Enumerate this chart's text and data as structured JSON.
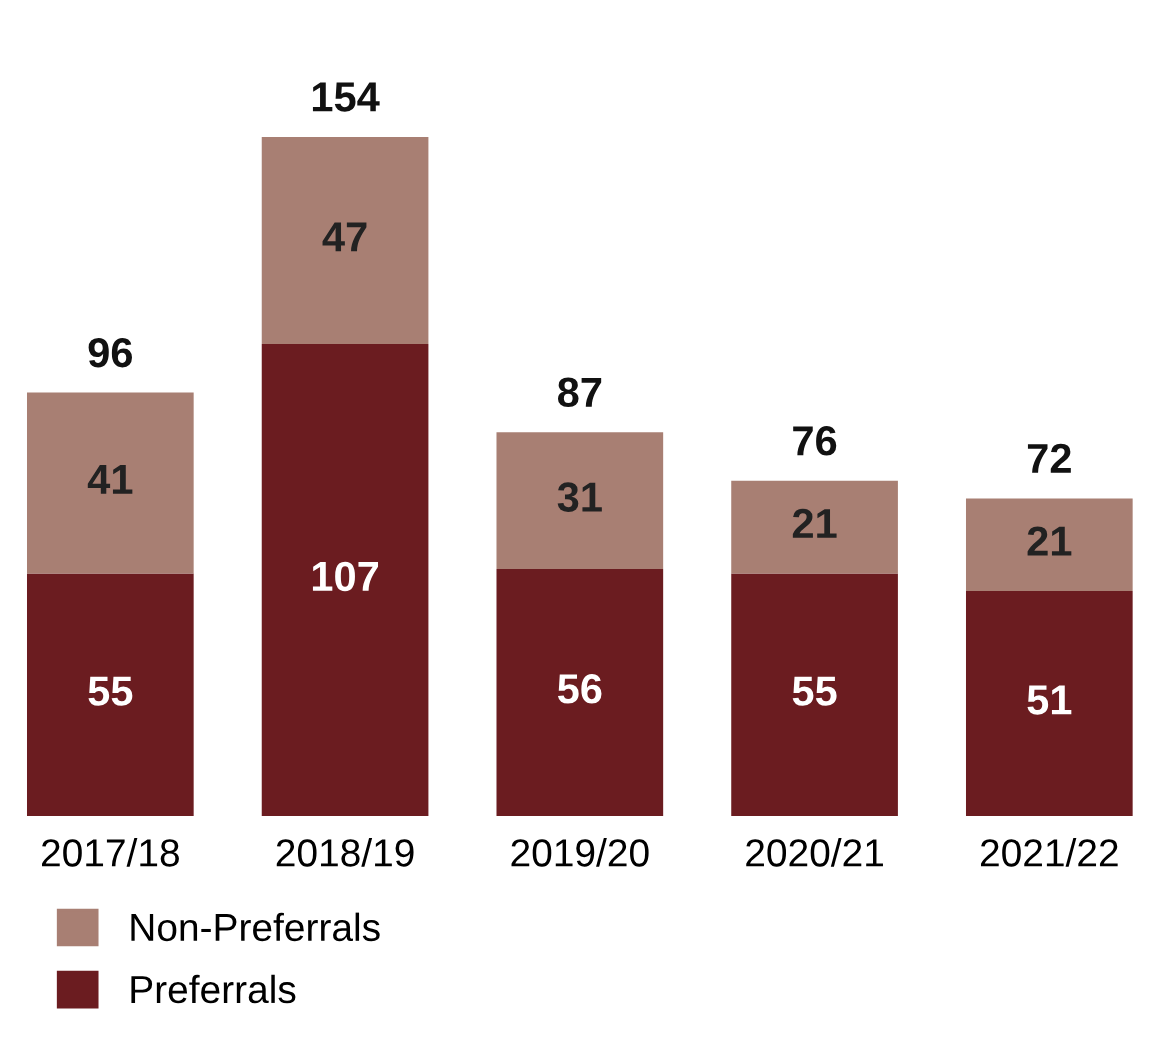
{
  "chart_data": {
    "type": "bar",
    "stacked": true,
    "categories": [
      "2017/18",
      "2018/19",
      "2019/20",
      "2020/21",
      "2021/22"
    ],
    "series": [
      {
        "name": "Preferrals",
        "color": "#6b1c20",
        "values": [
          55,
          107,
          56,
          55,
          51
        ]
      },
      {
        "name": "Non-Preferrals",
        "color": "#a87f73",
        "values": [
          41,
          47,
          31,
          21,
          21
        ]
      }
    ],
    "data_labels": true,
    "totals": [
      "96",
      "154",
      "87",
      "76",
      "72"
    ],
    "legend": "bottom left",
    "grid": false
  }
}
